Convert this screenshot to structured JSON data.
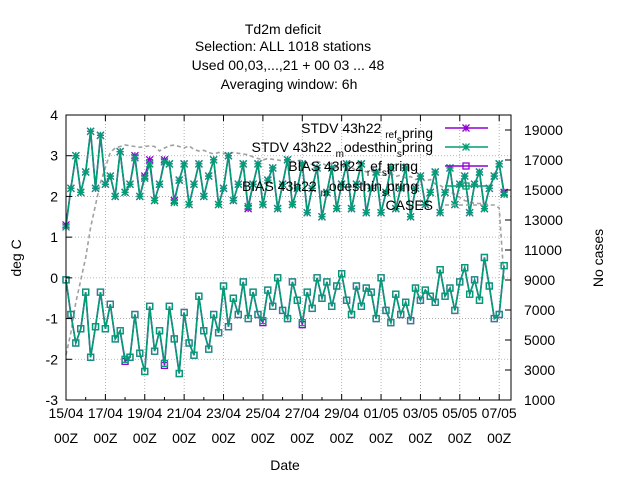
{
  "chart_data": {
    "type": "line",
    "title_lines": [
      "Td2m deficit",
      "Selection: ALL   1018 stations",
      "Used  00,03,...,21  + 00 03 ... 48",
      "Averaging window:  6h"
    ],
    "xlabel": "Date",
    "ylabel": "deg C",
    "y2label": "No cases",
    "ylim": [
      -3,
      4
    ],
    "y2lim": [
      1000,
      20000
    ],
    "yticks": [
      "-3",
      "-2",
      "-1",
      "0",
      "1",
      "2",
      "3",
      "4"
    ],
    "y2ticks": [
      "1000",
      "3000",
      "5000",
      "7000",
      "9000",
      "11000",
      "13000",
      "15000",
      "17000",
      "19000"
    ],
    "xtick_dates": [
      "15/04",
      "17/04",
      "19/04",
      "21/04",
      "23/04",
      "25/04",
      "27/04",
      "29/04",
      "01/05",
      "03/05",
      "05/05",
      "07/05"
    ],
    "xtick_hours": [
      "00Z",
      "00Z",
      "00Z",
      "00Z",
      "00Z",
      "00Z",
      "00Z",
      "00Z",
      "00Z",
      "00Z",
      "00Z",
      "00Z"
    ],
    "x_start_days": 0,
    "x_end_days": 22.6,
    "x_step_days": 0.25,
    "grid": true,
    "legend_position": "top-right",
    "colors": {
      "ref": "#9400d3",
      "model": "#009e73",
      "cases": "#a0a0a0"
    },
    "series": [
      {
        "name": "STDV 43h22_ref_spring",
        "label_main": "STDV 43h22",
        "label_sub": "ref",
        "label_mid": "",
        "label_sub2": "s",
        "label_end": "pring",
        "color_key": "ref",
        "marker": "star",
        "values": [
          1.3,
          2.2,
          3.0,
          2.1,
          2.6,
          3.6,
          2.2,
          3.5,
          2.3,
          2.5,
          2.0,
          3.1,
          2.1,
          2.3,
          3.0,
          2.0,
          2.5,
          2.9,
          1.9,
          2.3,
          2.9,
          2.8,
          1.9,
          2.4,
          2.8,
          1.8,
          2.3,
          2.8,
          2.0,
          2.5,
          2.9,
          1.8,
          2.2,
          3.0,
          1.9,
          2.3,
          2.8,
          1.7,
          2.3,
          2.8,
          1.8,
          2.4,
          2.7,
          1.7,
          2.3,
          2.9,
          1.8,
          2.2,
          2.8,
          1.6,
          2.2,
          2.7,
          1.5,
          2.1,
          2.7,
          1.7,
          2.3,
          2.8,
          1.7,
          2.3,
          2.8,
          1.6,
          2.2,
          2.6,
          1.6,
          2.1,
          2.7,
          1.7,
          2.2,
          2.7,
          1.5,
          2.2,
          2.5,
          1.8,
          2.1,
          2.6,
          1.6,
          2.1,
          2.7,
          1.8,
          2.3,
          2.5,
          1.6,
          2.3,
          2.6,
          1.7,
          2.2,
          2.5,
          2.8,
          2.1
        ]
      },
      {
        "name": "STDV 43h22_modesthin_spring",
        "label_main": "STDV 43h22",
        "label_sub": "m",
        "label_mid": "odesthin",
        "label_sub2": "s",
        "label_end": "pring",
        "color_key": "model",
        "marker": "star",
        "values": [
          1.25,
          2.2,
          3.0,
          2.1,
          2.6,
          3.6,
          2.2,
          3.5,
          2.3,
          2.5,
          2.0,
          3.1,
          2.1,
          2.3,
          2.95,
          2.0,
          2.45,
          2.8,
          1.9,
          2.3,
          2.85,
          2.8,
          1.85,
          2.4,
          2.8,
          1.8,
          2.3,
          2.8,
          2.0,
          2.5,
          2.9,
          1.8,
          2.2,
          3.0,
          1.9,
          2.3,
          2.8,
          1.75,
          2.3,
          2.8,
          1.8,
          2.4,
          2.7,
          1.7,
          2.3,
          2.9,
          1.8,
          2.2,
          2.8,
          1.6,
          2.2,
          2.7,
          1.5,
          2.1,
          2.7,
          1.7,
          2.3,
          2.8,
          1.7,
          2.3,
          2.8,
          1.6,
          2.2,
          2.6,
          1.6,
          2.1,
          2.7,
          1.7,
          2.2,
          2.7,
          1.5,
          2.2,
          2.5,
          1.8,
          2.1,
          2.6,
          1.6,
          2.1,
          2.7,
          1.8,
          2.3,
          2.5,
          1.6,
          2.3,
          2.6,
          1.7,
          2.2,
          2.5,
          2.8,
          2.05
        ]
      },
      {
        "name": "BIAS 43h22_ref_spring",
        "label_main": "BIAS 43h22",
        "label_sub": "r",
        "label_mid": "ef",
        "label_sub2": "s",
        "label_end": "pring",
        "color_key": "ref",
        "marker": "square",
        "values": [
          -0.05,
          -0.9,
          -1.6,
          -1.25,
          -0.35,
          -1.95,
          -1.2,
          -0.35,
          -1.25,
          -0.65,
          -1.5,
          -1.3,
          -2.05,
          -1.95,
          -0.9,
          -1.85,
          -2.3,
          -0.7,
          -1.8,
          -1.3,
          -2.15,
          -0.7,
          -1.5,
          -2.35,
          -0.85,
          -1.6,
          -1.9,
          -0.45,
          -1.3,
          -1.75,
          -0.9,
          -1.35,
          -0.2,
          -1.2,
          -0.5,
          -0.9,
          -0.1,
          -1.0,
          -0.35,
          -0.9,
          -1.1,
          -0.3,
          -0.7,
          0.0,
          -0.8,
          -1.0,
          -0.1,
          -0.55,
          -1.15,
          -0.35,
          -0.75,
          0.0,
          -0.5,
          -0.1,
          -0.7,
          -0.2,
          0.1,
          -0.55,
          -0.9,
          -0.2,
          -0.7,
          -0.25,
          -0.35,
          -1.0,
          0.0,
          -0.8,
          -1.1,
          -0.4,
          -0.9,
          -0.6,
          -1.05,
          -0.25,
          -0.55,
          -0.3,
          -0.45,
          -0.6,
          0.2,
          -0.45,
          -0.25,
          -0.8,
          -0.1,
          0.25,
          -0.4,
          -0.05,
          -0.55,
          0.5,
          -0.2,
          -1.0,
          -0.9,
          0.3
        ]
      },
      {
        "name": "BIAS 43h22_modesthin_spring",
        "label_main": "BIAS 43h22",
        "label_sub": "m",
        "label_mid": "odesthin",
        "label_sub2": "s",
        "label_end": "pring",
        "color_key": "model",
        "marker": "square",
        "values": [
          -0.05,
          -0.9,
          -1.6,
          -1.25,
          -0.35,
          -1.95,
          -1.2,
          -0.35,
          -1.25,
          -0.65,
          -1.5,
          -1.3,
          -2.0,
          -1.95,
          -0.9,
          -1.85,
          -2.3,
          -0.7,
          -1.8,
          -1.3,
          -2.1,
          -0.7,
          -1.5,
          -2.35,
          -0.85,
          -1.6,
          -1.9,
          -0.45,
          -1.3,
          -1.75,
          -0.9,
          -1.35,
          -0.2,
          -1.2,
          -0.5,
          -0.9,
          -0.1,
          -1.0,
          -0.35,
          -0.9,
          -1.05,
          -0.3,
          -0.7,
          0.0,
          -0.8,
          -1.0,
          -0.1,
          -0.55,
          -1.1,
          -0.35,
          -0.75,
          0.0,
          -0.5,
          -0.1,
          -0.7,
          -0.2,
          0.1,
          -0.55,
          -0.9,
          -0.2,
          -0.7,
          -0.25,
          -0.35,
          -1.0,
          0.0,
          -0.8,
          -1.1,
          -0.4,
          -0.9,
          -0.6,
          -1.05,
          -0.25,
          -0.55,
          -0.3,
          -0.45,
          -0.6,
          0.2,
          -0.45,
          -0.25,
          -0.8,
          -0.1,
          0.25,
          -0.4,
          -0.05,
          -0.55,
          0.5,
          -0.2,
          -1.0,
          -0.9,
          0.3
        ]
      },
      {
        "name": "CASES",
        "label_main": "CASES",
        "color_key": "cases",
        "marker": "none",
        "axis": "y2",
        "values": [
          4000,
          5500,
          7500,
          9000,
          10500,
          12500,
          14000,
          15500,
          16500,
          17500,
          17800,
          17900,
          18000,
          17950,
          17900,
          17850,
          17900,
          17950,
          17900,
          17600,
          17800,
          17950,
          18000,
          17900,
          17800,
          17950,
          17700,
          17600,
          17650,
          17500,
          17400,
          17500,
          17450,
          17400,
          17500,
          17450,
          17400,
          17350,
          17200,
          17100,
          17000,
          17100,
          17050,
          17000,
          16950,
          17000,
          16900,
          16950,
          17000,
          16800,
          16700,
          16900,
          16800,
          16600,
          16800,
          16500,
          16700,
          16400,
          16500,
          16300,
          16400,
          16200,
          16300,
          16100,
          16200,
          16000,
          16100,
          15900,
          16000,
          15800,
          15900,
          15700,
          15800,
          15600,
          15700,
          15400,
          15300,
          15100,
          14900,
          14700,
          14500,
          14300,
          14200,
          14100,
          14100,
          14100,
          14000,
          14000,
          13800,
          9000
        ]
      }
    ]
  }
}
